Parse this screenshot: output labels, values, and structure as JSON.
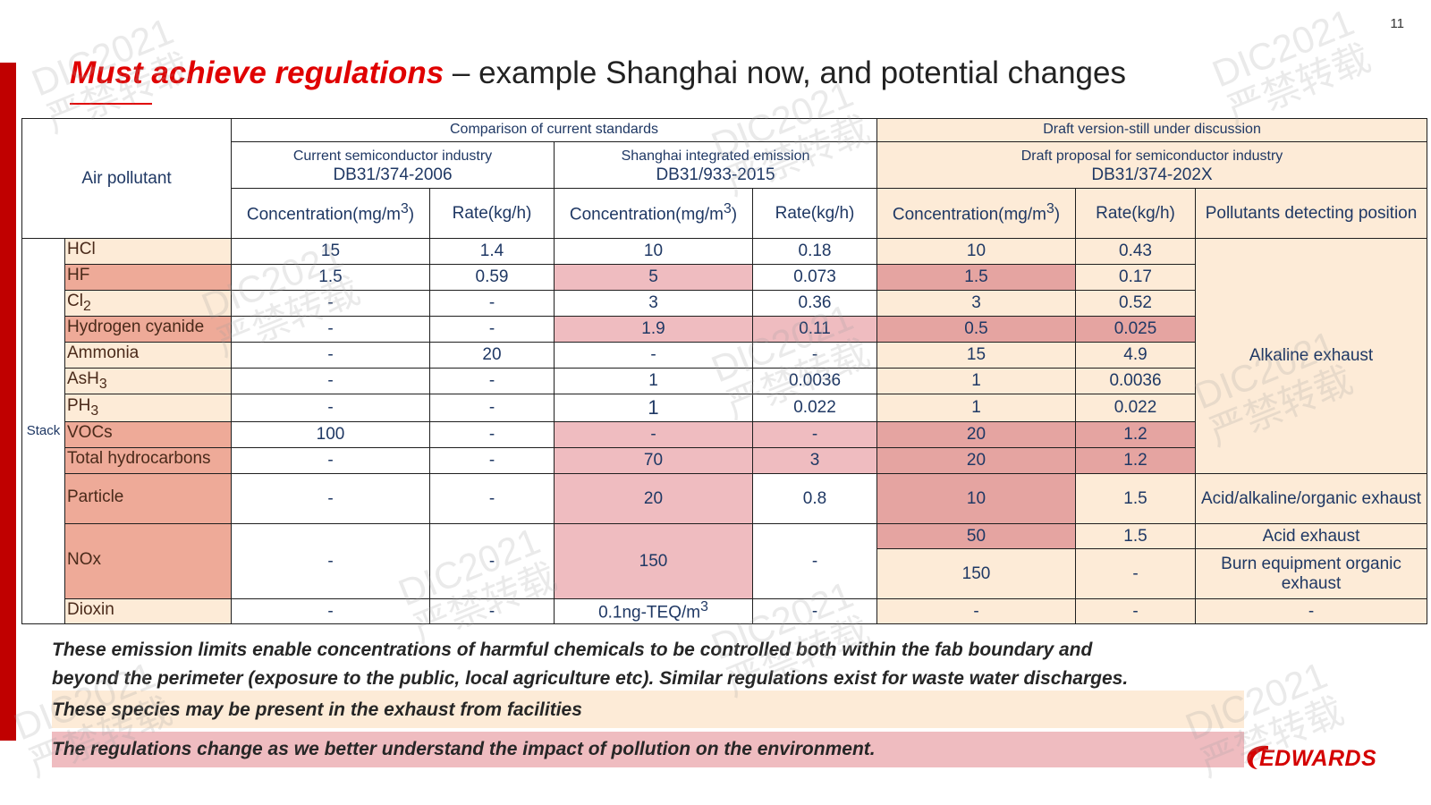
{
  "page_number": "11",
  "title": {
    "emphasis": "Must achieve regulations",
    "rest": " – example Shanghai now, and potential changes"
  },
  "table": {
    "air_pollutant_label": "Air pollutant",
    "group_current": "Comparison of current standards",
    "group_draft": "Draft version-still under discussion",
    "std1_name": "Current  semiconductor industry",
    "std1_code": "DB31/374-2006",
    "std2_name": "Shanghai integrated emission",
    "std2_code": "DB31/933-2015",
    "std3_name": "Draft proposal for semiconductor industry",
    "std3_code": "DB31/374-202X",
    "conc_label": "Concentration(mg/m",
    "conc_sup": "3",
    "conc_close": ")",
    "rate_label": "Rate(kg/h)",
    "position_label": "Pollutants detecting position",
    "stack_label": "Stack",
    "rows": [
      {
        "name": "HCl",
        "sub": "",
        "c1": "15",
        "r1": "1.4",
        "c2": "10",
        "r2": "0.18",
        "c3": "10",
        "r3": "0.43"
      },
      {
        "name": "HF",
        "sub": "",
        "c1": "1.5",
        "r1": "0.59",
        "c2": "5",
        "r2": "0.073",
        "c3": "1.5",
        "r3": "0.17"
      },
      {
        "name": "Cl",
        "sub": "2",
        "c1": "-",
        "r1": "-",
        "c2": "3",
        "r2": "0.36",
        "c3": "3",
        "r3": "0.52"
      },
      {
        "name": "Hydrogen cyanide",
        "sub": "",
        "c1": "-",
        "r1": "-",
        "c2": "1.9",
        "r2": "0.11",
        "c3": "0.5",
        "r3": "0.025"
      },
      {
        "name": "Ammonia",
        "sub": "",
        "c1": "-",
        "r1": "20",
        "c2": "-",
        "r2": "-",
        "c3": "15",
        "r3": "4.9"
      },
      {
        "name": "AsH",
        "sub": "3",
        "c1": "-",
        "r1": "-",
        "c2": "1",
        "r2": "0.0036",
        "c3": "1",
        "r3": "0.0036"
      },
      {
        "name": "PH",
        "sub": "3",
        "c1": "-",
        "r1": "-",
        "c2": "1",
        "r2": "0.022",
        "c3": "1",
        "r3": "0.022"
      },
      {
        "name": "VOCs",
        "sub": "",
        "c1": "100",
        "r1": "-",
        "c2": "-",
        "r2": "-",
        "c3": "20",
        "r3": "1.2"
      },
      {
        "name": "Total hydrocarbons",
        "sub": "",
        "c1": "-",
        "r1": "-",
        "c2": "70",
        "r2": "3",
        "c3": "20",
        "r3": "1.2"
      },
      {
        "name": "Particle",
        "sub": "",
        "c1": "-",
        "r1": "-",
        "c2": "20",
        "r2": "0.8",
        "c3": "10",
        "r3": "1.5"
      },
      {
        "name": "NOx",
        "sub": "",
        "c1": "-",
        "r1": "-",
        "c2": "150",
        "r2": "-",
        "c3a": "50",
        "r3a": "1.5",
        "c3b": "150",
        "r3b": "-"
      },
      {
        "name": "Dioxin",
        "sub": "",
        "c1": "-",
        "r1": "-",
        "c2": "0.1ng-TEQ/m",
        "c2_sup": "3",
        "r2": "-",
        "c3": "-",
        "r3": "-"
      }
    ],
    "positions": {
      "alkaline": "Alkaline exhaust",
      "particle": "Acid/alkaline/organic exhaust",
      "nox_acid": "Acid exhaust",
      "nox_burn": "Burn equipment organic exhaust",
      "dioxin": "-"
    }
  },
  "notes": {
    "line1": "These emission limits enable concentrations of harmful chemicals to be controlled both within the fab boundary and",
    "line2": "beyond the perimeter (exposure to the public, local agriculture etc). Similar regulations exist for waste water discharges.",
    "legend_beige": "These species may be present in the exhaust from facilities",
    "legend_pink": "The regulations change as we better understand the impact of pollution on the environment."
  },
  "logo": "EDWARDS",
  "watermark": {
    "line1": "DIC2021",
    "line2": "严禁转载"
  },
  "colors": {
    "accent_red": "#e00000",
    "beige": "#fdebd7",
    "salmon": "#eeaa98",
    "pink": "#efbcc0"
  }
}
